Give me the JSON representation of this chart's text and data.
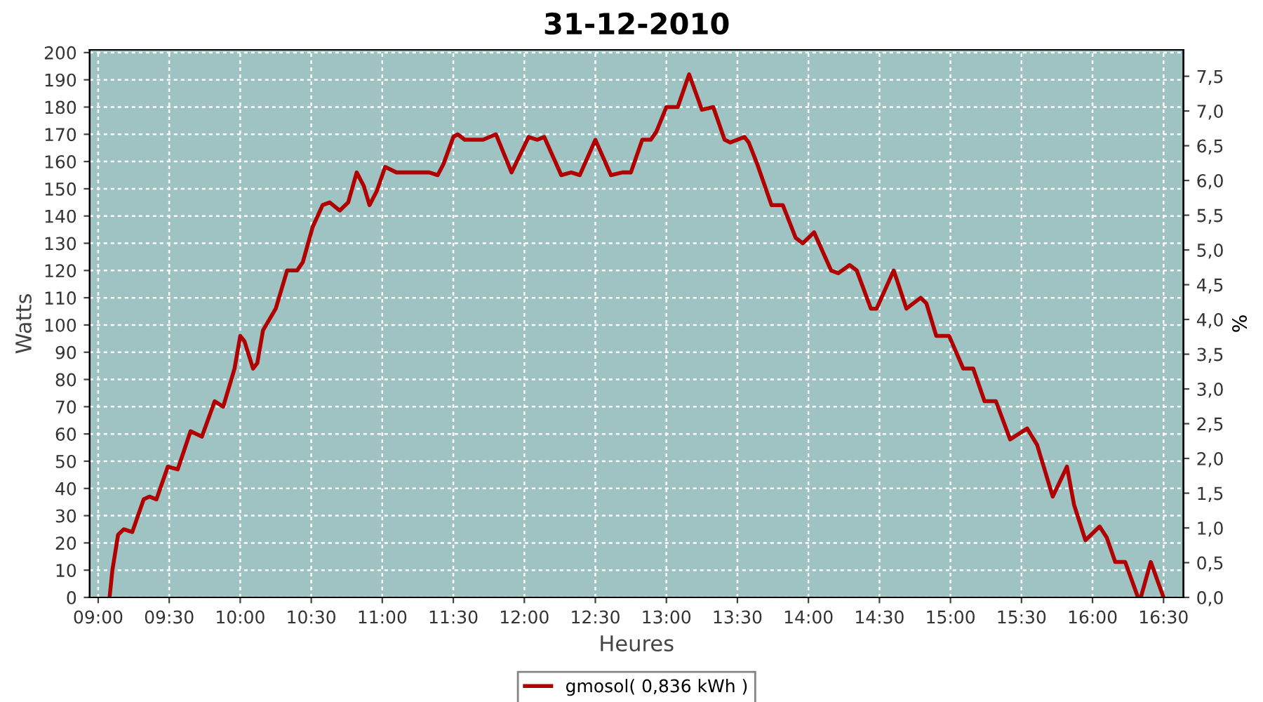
{
  "chart_data": {
    "type": "line",
    "title": "31-12-2010",
    "xlabel": "Heures",
    "ylabel": "Watts",
    "y2label": "%",
    "xlim": [
      8.94,
      16.64
    ],
    "xticks": [
      {
        "value": 9,
        "label": "09:00"
      },
      {
        "value": 9.5,
        "label": "09:30"
      },
      {
        "value": 10,
        "label": "10:00"
      },
      {
        "value": 10.5,
        "label": "10:30"
      },
      {
        "value": 11,
        "label": "11:00"
      },
      {
        "value": 11.5,
        "label": "11:30"
      },
      {
        "value": 12,
        "label": "12:00"
      },
      {
        "value": 12.5,
        "label": "12:30"
      },
      {
        "value": 13,
        "label": "13:00"
      },
      {
        "value": 13.5,
        "label": "13:30"
      },
      {
        "value": 14,
        "label": "14:00"
      },
      {
        "value": 14.5,
        "label": "14:30"
      },
      {
        "value": 15,
        "label": "15:00"
      },
      {
        "value": 15.5,
        "label": "15:30"
      },
      {
        "value": 16,
        "label": "16:00"
      },
      {
        "value": 16.5,
        "label": "16:30"
      }
    ],
    "ylim": [
      0,
      201
    ],
    "yticks": [
      0,
      10,
      20,
      30,
      40,
      50,
      60,
      70,
      80,
      90,
      100,
      110,
      120,
      130,
      140,
      150,
      160,
      170,
      180,
      190,
      200
    ],
    "y2lim": [
      0,
      7.88
    ],
    "y2ticks": [
      {
        "value": 0,
        "label": "0,0"
      },
      {
        "value": 0.5,
        "label": "0,5"
      },
      {
        "value": 1,
        "label": "1,0"
      },
      {
        "value": 1.5,
        "label": "1,5"
      },
      {
        "value": 2,
        "label": "2,0"
      },
      {
        "value": 2.5,
        "label": "2,5"
      },
      {
        "value": 3,
        "label": "3,0"
      },
      {
        "value": 3.5,
        "label": "3,5"
      },
      {
        "value": 4,
        "label": "4,0"
      },
      {
        "value": 4.5,
        "label": "4,5"
      },
      {
        "value": 5,
        "label": "5,0"
      },
      {
        "value": 5.5,
        "label": "5,5"
      },
      {
        "value": 6,
        "label": "6,0"
      },
      {
        "value": 6.5,
        "label": "6,5"
      },
      {
        "value": 7,
        "label": "7,0"
      },
      {
        "value": 7.5,
        "label": "7,5"
      }
    ],
    "grid": true,
    "legend": "bottom",
    "marker": "none",
    "line_style": "solid",
    "series": [
      {
        "name": "gmosol( 0,836 kWh )",
        "color": "#b00000",
        "x": [
          9.08,
          9.1,
          9.14,
          9.18,
          9.24,
          9.32,
          9.36,
          9.41,
          9.49,
          9.56,
          9.65,
          9.73,
          9.82,
          9.88,
          9.96,
          10.0,
          10.03,
          10.09,
          10.12,
          10.16,
          10.25,
          10.33,
          10.4,
          10.44,
          10.51,
          10.58,
          10.63,
          10.7,
          10.76,
          10.82,
          10.87,
          10.91,
          10.96,
          11.02,
          11.1,
          11.2,
          11.33,
          11.39,
          11.43,
          11.5,
          11.53,
          11.58,
          11.71,
          11.8,
          11.91,
          12.03,
          12.09,
          12.14,
          12.26,
          12.33,
          12.39,
          12.5,
          12.61,
          12.69,
          12.75,
          12.83,
          12.89,
          12.93,
          13.0,
          13.08,
          13.16,
          13.25,
          13.33,
          13.41,
          13.45,
          13.55,
          13.58,
          13.64,
          13.74,
          13.82,
          13.91,
          13.96,
          14.04,
          14.16,
          14.21,
          14.29,
          14.34,
          14.44,
          14.48,
          14.6,
          14.62,
          14.69,
          14.79,
          14.83,
          14.9,
          14.99,
          15.09,
          15.16,
          15.24,
          15.32,
          15.42,
          15.54,
          15.61,
          15.72,
          15.82,
          15.87,
          15.95,
          16.05,
          16.1,
          16.16,
          16.23,
          16.32,
          16.34,
          16.41,
          16.5
        ],
        "values": [
          0,
          10,
          23,
          25,
          24,
          36,
          37,
          36,
          48,
          47,
          61,
          59,
          72,
          70,
          84,
          96,
          94,
          84,
          86,
          98,
          106,
          120,
          120,
          123,
          136,
          144,
          145,
          142,
          145,
          156,
          151,
          144,
          149,
          158,
          156,
          156,
          156,
          155,
          159,
          169,
          170,
          168,
          168,
          170,
          156,
          169,
          168,
          169,
          155,
          156,
          155,
          168,
          155,
          156,
          156,
          168,
          168,
          171,
          180,
          180,
          192,
          179,
          180,
          168,
          167,
          169,
          167,
          159,
          144,
          144,
          132,
          130,
          134,
          120,
          119,
          122,
          120,
          106,
          106,
          120,
          117,
          106,
          110,
          108,
          96,
          96,
          84,
          84,
          72,
          72,
          58,
          62,
          56,
          37,
          48,
          34,
          21,
          26,
          22,
          13,
          13,
          0,
          0,
          13,
          0
        ]
      }
    ]
  }
}
